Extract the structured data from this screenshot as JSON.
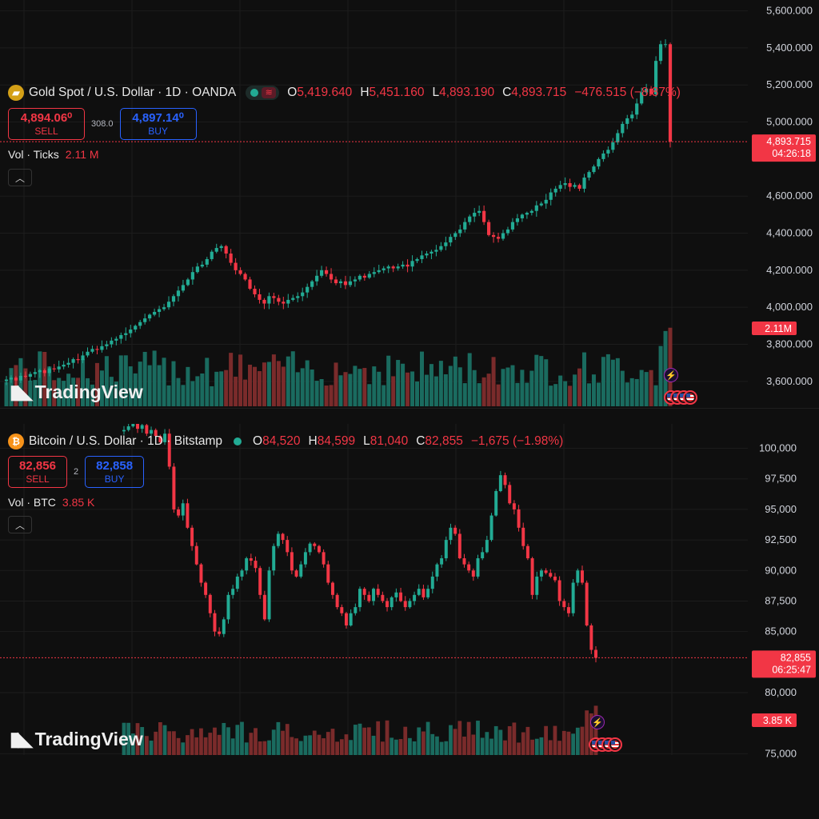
{
  "colors": {
    "up": "#22ab94",
    "down": "#f23645",
    "up_vol": "#1a6b5f",
    "down_vol": "#7a2b2b",
    "background": "#0f0f0f",
    "grid": "#1c1c1c",
    "buy": "#2962ff"
  },
  "watermark": "TradingView",
  "gold": {
    "symbol_icon": "gold-bars-icon",
    "title": "Gold Spot / U.S. Dollar · 1D · OANDA",
    "ohlc": {
      "o_label": "O",
      "o": "5,419.640",
      "h_label": "H",
      "h": "5,451.160",
      "l_label": "L",
      "l": "4,893.190",
      "c_label": "C",
      "c": "4,893.715",
      "change": "−476.515 (−8.87%)"
    },
    "sell": {
      "price": "4,894.06⁰",
      "label": "SELL"
    },
    "spread": "308.0",
    "buy": {
      "price": "4,897.14⁰",
      "label": "BUY"
    },
    "volume": {
      "label": "Vol · Ticks",
      "value": "2.11 M"
    },
    "price_tag": {
      "price": "4,893.715",
      "countdown": "04:26:18"
    },
    "volume_tag": "2.11M"
  },
  "btc": {
    "symbol_icon": "bitcoin-icon",
    "title": "Bitcoin / U.S. Dollar · 1D · Bitstamp",
    "ohlc": {
      "o_label": "O",
      "o": "84,520",
      "h_label": "H",
      "h": "84,599",
      "l_label": "L",
      "l": "81,040",
      "c_label": "C",
      "c": "82,855",
      "change": "−1,675 (−1.98%)"
    },
    "sell": {
      "price": "82,856",
      "label": "SELL"
    },
    "spread": "2",
    "buy": {
      "price": "82,858",
      "label": "BUY"
    },
    "volume": {
      "label": "Vol · BTC",
      "value": "3.85 K"
    },
    "price_tag": {
      "price": "82,855",
      "countdown": "06:25:47"
    },
    "volume_tag": "3.85 K"
  },
  "chart_data": [
    {
      "type": "candlestick",
      "title": "Gold Spot / U.S. Dollar · 1D · OANDA",
      "ylim": [
        3500,
        5650
      ],
      "yticks": [
        "5,600.000",
        "5,400.000",
        "5,200.000",
        "5,000.000",
        "4,600.000",
        "4,400.000",
        "4,200.000",
        "4,000.000",
        "3,800.000",
        "3,600.000"
      ],
      "yticks_values": [
        5600,
        5400,
        5200,
        5000,
        4600,
        4400,
        4200,
        4000,
        3800,
        3600
      ],
      "close_path": [
        3610,
        3620,
        3605,
        3630,
        3625,
        3640,
        3650,
        3660,
        3645,
        3670,
        3665,
        3680,
        3690,
        3700,
        3720,
        3715,
        3740,
        3760,
        3775,
        3770,
        3790,
        3800,
        3820,
        3830,
        3850,
        3860,
        3880,
        3900,
        3920,
        3940,
        3960,
        3975,
        3990,
        4000,
        4030,
        4060,
        4090,
        4120,
        4150,
        4190,
        4220,
        4230,
        4260,
        4300,
        4320,
        4330,
        4290,
        4240,
        4200,
        4180,
        4150,
        4100,
        4070,
        4040,
        4020,
        4060,
        4050,
        4030,
        4020,
        4040,
        4050,
        4060,
        4080,
        4110,
        4140,
        4170,
        4200,
        4180,
        4150,
        4130,
        4140,
        4120,
        4140,
        4150,
        4170,
        4160,
        4180,
        4190,
        4200,
        4210,
        4220,
        4210,
        4220,
        4230,
        4220,
        4250,
        4260,
        4280,
        4290,
        4300,
        4310,
        4330,
        4350,
        4380,
        4400,
        4420,
        4460,
        4490,
        4510,
        4520,
        4460,
        4390,
        4380,
        4370,
        4400,
        4420,
        4460,
        4480,
        4500,
        4510,
        4520,
        4550,
        4560,
        4580,
        4620,
        4640,
        4660,
        4670,
        4650,
        4660,
        4640,
        4700,
        4730,
        4760,
        4800,
        4830,
        4850,
        4890,
        4940,
        4990,
        5020,
        5040,
        5100,
        5160,
        5180,
        5150,
        5330,
        5420,
        5420,
        4894
      ],
      "volume_unit": "ticks",
      "last_volume": "2.11M"
    },
    {
      "type": "candlestick",
      "title": "Bitcoin / U.S. Dollar · 1D · Bitstamp",
      "ylim": [
        74500,
        102000
      ],
      "yticks": [
        "100,000",
        "97,500",
        "95,000",
        "92,500",
        "90,000",
        "87,500",
        "85,000",
        "80,000",
        "75,000"
      ],
      "yticks_values": [
        100000,
        97500,
        95000,
        92500,
        90000,
        87500,
        85000,
        80000,
        75000
      ],
      "close_path": [
        101500,
        101800,
        102000,
        101600,
        101900,
        101200,
        101500,
        101000,
        100500,
        101200,
        98500,
        95000,
        94500,
        95500,
        93500,
        92000,
        90500,
        89000,
        88000,
        86500,
        85000,
        84800,
        86000,
        88000,
        88500,
        89500,
        90000,
        91000,
        90800,
        90200,
        88000,
        86000,
        90000,
        92000,
        93000,
        92500,
        91500,
        90000,
        89500,
        90500,
        91500,
        92200,
        92000,
        91500,
        90500,
        89000,
        88000,
        87000,
        86500,
        85500,
        86500,
        87000,
        88500,
        88000,
        87500,
        88500,
        88000,
        87500,
        87000,
        87800,
        88200,
        87500,
        87000,
        87500,
        88000,
        88500,
        87800,
        88500,
        89500,
        90500,
        91000,
        92500,
        93500,
        93000,
        91000,
        90500,
        90000,
        89500,
        91000,
        91500,
        92500,
        94500,
        96500,
        97800,
        97000,
        95500,
        95000,
        93500,
        92000,
        91000,
        88000,
        89500,
        90000,
        89800,
        89500,
        89200,
        87500,
        87000,
        86500,
        89000,
        90000,
        89000,
        85500,
        83500,
        82855
      ],
      "volume_unit": "BTC",
      "last_volume": "3.85 K"
    }
  ]
}
